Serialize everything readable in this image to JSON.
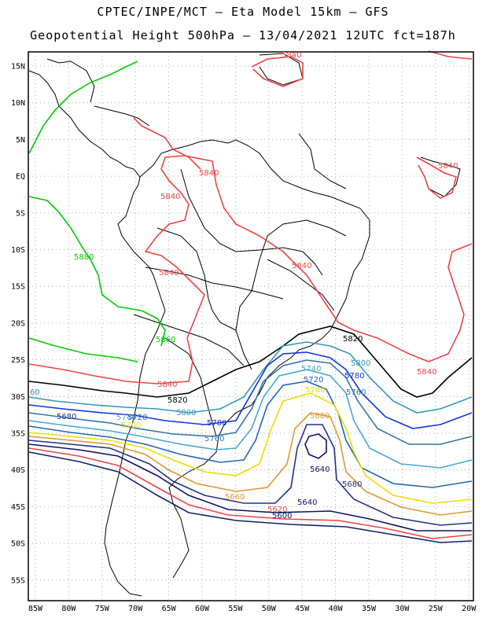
{
  "header": {
    "line1": "CPTEC/INPE/MCT –  Eta Model 15km – GFS",
    "line2": "Geopotential Height 500hPa – 13/04/2021 12UTC fct=187h"
  },
  "axes": {
    "lat_labels": [
      "15N",
      "10N",
      "5N",
      "EQ",
      "5S",
      "10S",
      "15S",
      "20S",
      "25S",
      "30S",
      "35S",
      "40S",
      "45S",
      "50S",
      "55S"
    ],
    "lon_labels": [
      "85W",
      "80W",
      "75W",
      "70W",
      "65W",
      "60W",
      "55W",
      "50W",
      "45W",
      "40W",
      "35W",
      "30W",
      "25W",
      "20W"
    ]
  },
  "colors": {
    "c5880": "#00cc00",
    "c5860": "#00cc00",
    "c5840": "#ee4444",
    "c5820": "#000000",
    "c5800": "#3399bb",
    "c5780": "#1133dd",
    "c5760": "#3377aa",
    "c5740": "#44aacc",
    "c5720": "#2266bb",
    "c5700": "#eedd00",
    "c5680": "#dd9933",
    "c5660": "#223388",
    "c5640": "#111166",
    "c5620": "#ee4444",
    "c5600": "#112266"
  },
  "contour_labels": {
    "l5840a": "5840",
    "l5840b": "5840",
    "l5840c": "5840",
    "l5840d": "5840",
    "l5840e": "5840",
    "l5840f": "5840",
    "l5840g": "5840",
    "l5840h": "5840",
    "l5880a": "5880",
    "l5860a": "5860",
    "l5820a": "5820",
    "l5820b": "5820",
    "l5800a": "5800",
    "l5800b": "5800",
    "l5780a": "5780",
    "l5780b": "5780",
    "l5760a": "5760",
    "l5760b": "5760",
    "l5740a": "5740",
    "l5740b": "5740",
    "l5720a": "5720",
    "l5720b": "5720",
    "l5700a": "5700",
    "l5700b": "5700",
    "l5680a": "5680",
    "l5680b": "5680",
    "l5680c": "5680",
    "l5660a": "5660",
    "l5640a": "5640",
    "l5640b": "5640",
    "l5620a": "5620",
    "l5600a": "5600",
    "l60a": "60"
  }
}
